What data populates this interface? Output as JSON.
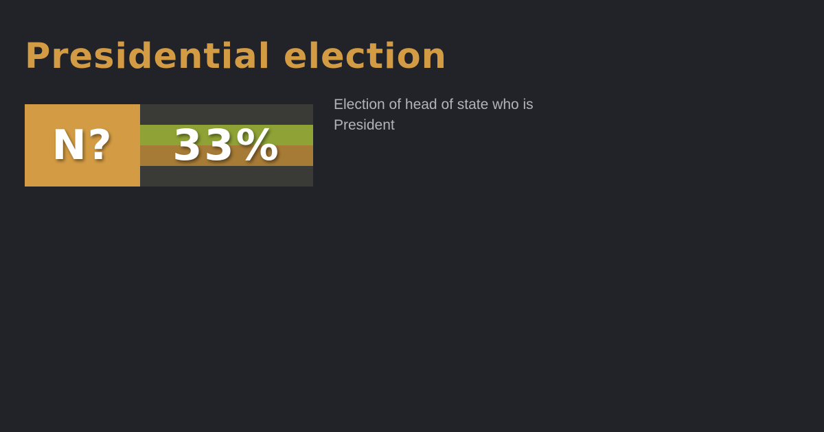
{
  "page": {
    "title": "Presidential election",
    "description": "Election of head of state who is President"
  },
  "score_card": {
    "label": "N?",
    "percent_text": "33%",
    "percent_value": 33
  },
  "colors": {
    "background": "#212328",
    "accent": "#d39c44",
    "track": "#3a3b37",
    "band_upper": "#8fa236",
    "band_lower": "#a67b36",
    "description_text": "#b1b4b9"
  }
}
